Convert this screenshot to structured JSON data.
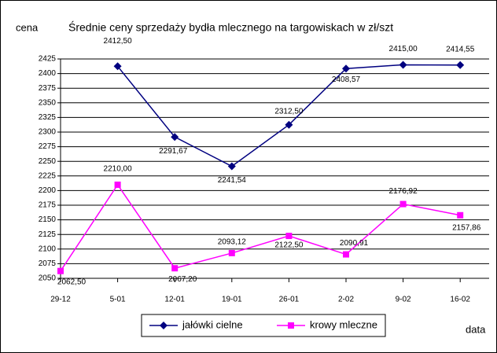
{
  "chart_data": {
    "type": "line",
    "title": "Średnie ceny sprzedaży bydła mlecznego na targowiskach w  zł/szt",
    "y_label": "cena",
    "x_label": "data",
    "categories": [
      "29-12",
      "5-01",
      "12-01",
      "19-01",
      "26-01",
      "2-02",
      "9-02",
      "16-02"
    ],
    "series": [
      {
        "name": "jałówki cielne",
        "color": "#000080",
        "marker": "diamond",
        "values": [
          null,
          2412.5,
          2291.67,
          2241.54,
          2312.5,
          2408.57,
          2415.0,
          2414.55
        ],
        "value_labels": [
          null,
          "2412,50",
          "2291,67",
          "2241,54",
          "2312,50",
          "2408,57",
          "2415,00",
          "2414,55"
        ]
      },
      {
        "name": "krowy mleczne",
        "color": "#ff00ff",
        "marker": "square",
        "values": [
          2062.5,
          2210.0,
          2067.2,
          2093.12,
          2122.5,
          2090.91,
          2176.92,
          2157.86
        ],
        "value_labels": [
          "2062,50",
          "2210,00",
          "2067,20",
          "2093,12",
          "2122,50",
          "2090,91",
          "2176,92",
          "2157,86"
        ]
      }
    ],
    "ylim": [
      2050,
      2425
    ],
    "yticks": [
      2050,
      2075,
      2100,
      2125,
      2150,
      2175,
      2200,
      2225,
      2250,
      2275,
      2300,
      2325,
      2350,
      2375,
      2400,
      2425
    ],
    "grid": true,
    "legend": "bottom"
  }
}
